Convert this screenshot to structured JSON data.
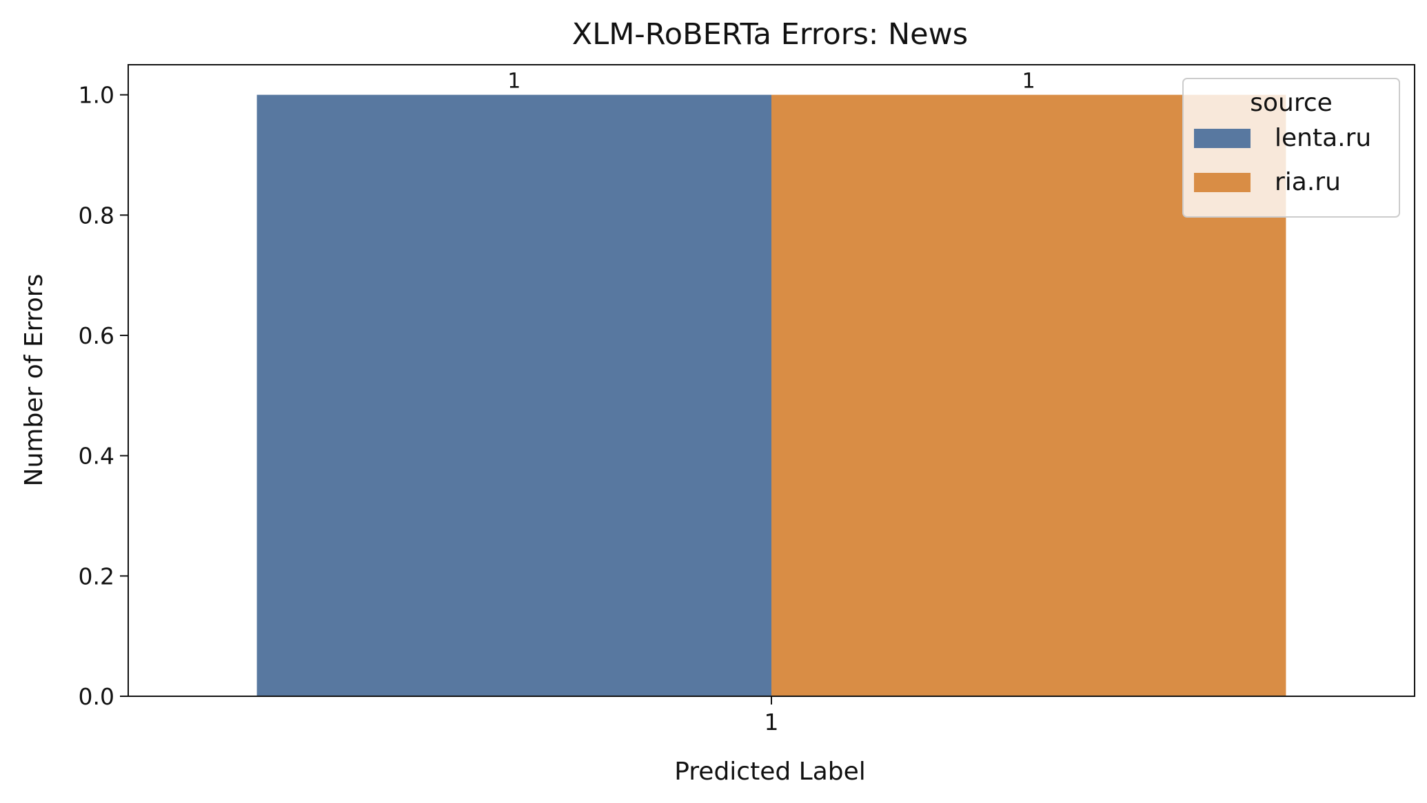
{
  "chart_data": {
    "type": "bar",
    "title": "XLM-RoBERTa Errors: News",
    "xlabel": "Predicted Label",
    "ylabel": "Number of Errors",
    "categories": [
      "1"
    ],
    "series": [
      {
        "name": "lenta.ru",
        "values": [
          1
        ],
        "color": "#5878A0"
      },
      {
        "name": "ria.ru",
        "values": [
          1
        ],
        "color": "#D98D45"
      }
    ],
    "data_labels": [
      [
        "1"
      ],
      [
        "1"
      ]
    ],
    "ylim": [
      0,
      1.05
    ],
    "yticks": [
      0.0,
      0.2,
      0.4,
      0.6,
      0.8,
      1.0
    ],
    "ytick_labels": [
      "0.0",
      "0.2",
      "0.4",
      "0.6",
      "0.8",
      "1.0"
    ],
    "grid": false,
    "legend": {
      "title": "source",
      "placement": "top-right"
    }
  }
}
